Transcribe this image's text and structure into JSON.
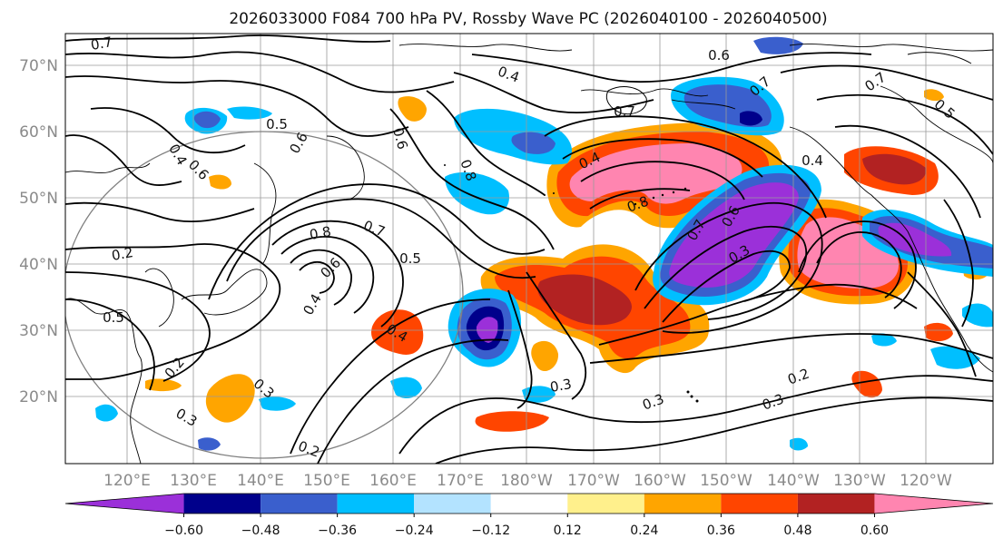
{
  "title": "2026033000 F084 700 hPa PV, Rossby Wave PC (2026040100 - 2026040500)",
  "latitude_labels": [
    "70°N",
    "60°N",
    "50°N",
    "40°N",
    "30°N",
    "20°N"
  ],
  "longitude_labels": [
    "120°E",
    "130°E",
    "140°E",
    "150°E",
    "160°E",
    "170°E",
    "180°W",
    "170°W",
    "160°W",
    "150°W",
    "140°W",
    "130°W",
    "120°W"
  ],
  "colorbar": {
    "colors": [
      "#9b30d9",
      "#00008b",
      "#3a5fcd",
      "#00bfff",
      "#b3e3ff",
      "#ffffff",
      "#fff08c",
      "#ffa500",
      "#ff4500",
      "#b22222",
      "#ff85b0"
    ],
    "tick_labels": [
      "−0.60",
      "−0.48",
      "−0.36",
      "−0.24",
      "−0.12",
      "0.12",
      "0.24",
      "0.36",
      "0.48",
      "0.60"
    ]
  },
  "contour_labels": [
    {
      "text": "0.7"
    },
    {
      "text": "0.4"
    },
    {
      "text": "0.6"
    },
    {
      "text": "0.7"
    },
    {
      "text": "0.7"
    },
    {
      "text": "0.5"
    },
    {
      "text": "0.5"
    },
    {
      "text": "0.7"
    },
    {
      "text": "0.6"
    },
    {
      "text": "0.6"
    },
    {
      "text": "0.4"
    },
    {
      "text": "0.8"
    },
    {
      "text": "0.4"
    },
    {
      "text": "0.4"
    },
    {
      "text": "0.6"
    },
    {
      "text": "0.8"
    },
    {
      "text": "0.7"
    },
    {
      "text": "0.6"
    },
    {
      "text": "0.3"
    },
    {
      "text": "0.8"
    },
    {
      "text": "0.7"
    },
    {
      "text": "0.6"
    },
    {
      "text": "0.5"
    },
    {
      "text": "0.4"
    },
    {
      "text": "0.2"
    },
    {
      "text": "0.5"
    },
    {
      "text": "0.4"
    },
    {
      "text": "0.2"
    },
    {
      "text": "0.3"
    },
    {
      "text": "0.3"
    },
    {
      "text": "0.2"
    },
    {
      "text": "0.3"
    },
    {
      "text": "0.3"
    },
    {
      "text": "0.3"
    },
    {
      "text": "0.2"
    }
  ]
}
